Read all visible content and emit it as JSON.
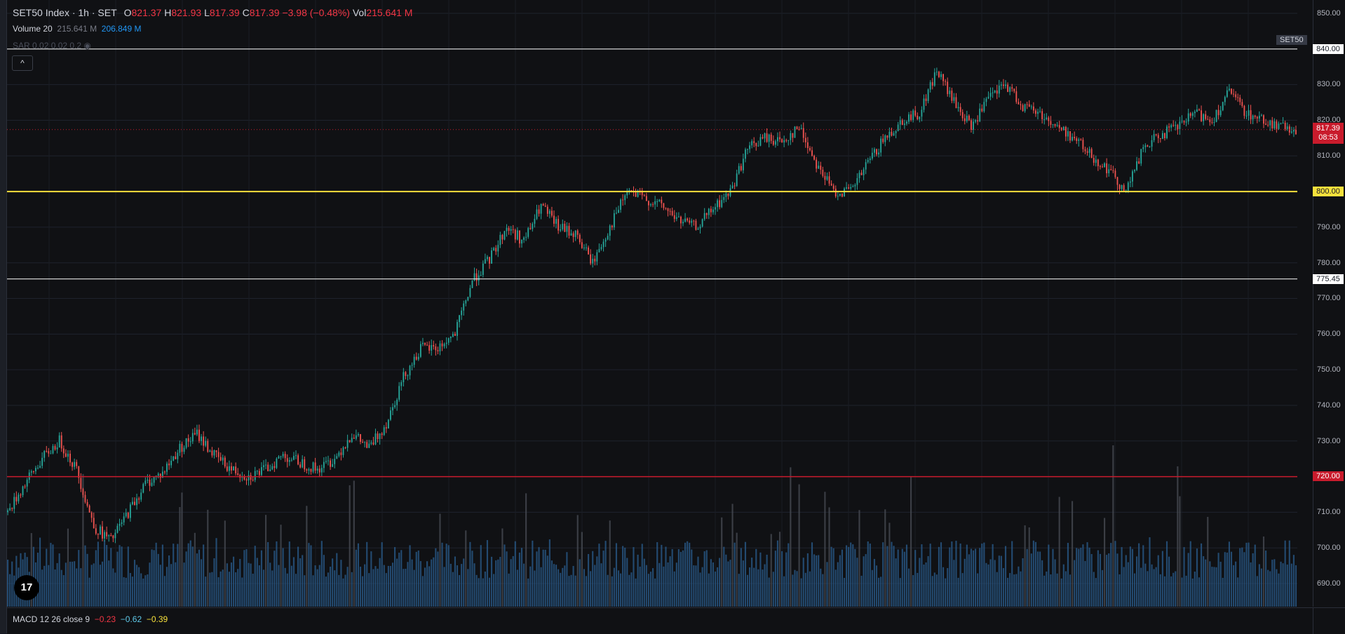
{
  "header": {
    "symbol": "SET50 Index · 1h · SET",
    "o_label": "O",
    "o_value": "821.37",
    "h_label": "H",
    "h_value": "821.93",
    "l_label": "L",
    "l_value": "817.39",
    "c_label": "C",
    "c_value": "817.39",
    "change": "−3.98 (−0.48%)",
    "vol_label": "Vol",
    "vol_value": "215.641 M"
  },
  "volume_legend": {
    "name": "Volume 20",
    "value1": "215.641 M",
    "value2": "206.849 M"
  },
  "sar_legend": {
    "text": "SAR 0.02 0.02 0.2"
  },
  "symbol_badge": "SET50",
  "collapse_button": "^",
  "logo_text": "17",
  "macd_legend": {
    "name": "MACD 12 26 close 9",
    "v1": "−0.23",
    "v2": "−0.62",
    "v3": "−0.39"
  },
  "price_axis": {
    "ticks": [
      "850.00",
      "830.00",
      "820.00",
      "810.00",
      "790.00",
      "780.00",
      "770.00",
      "760.00",
      "750.00",
      "740.00",
      "730.00",
      "710.00",
      "700.00",
      "690.00"
    ],
    "tags": {
      "t840": "840.00",
      "t800": "800.00",
      "t775": "775.45",
      "t720": "720.00",
      "last_price": "817.39",
      "countdown": "08:53"
    }
  },
  "colors": {
    "up": "#26a69a",
    "down": "#ef5350",
    "volume": "#2962ff",
    "level_white": "#ffffff",
    "level_yellow": "#f7e13c",
    "level_red": "#c91b2c"
  },
  "chart_data": {
    "type": "candlestick",
    "title": "SET50 Index · 1h · SET",
    "ylim": [
      685,
      852
    ],
    "horizontal_levels": [
      840.0,
      800.0,
      775.45,
      720.0
    ],
    "last_price": 817.39,
    "close_path_anchors": [
      [
        0,
        710
      ],
      [
        8,
        718
      ],
      [
        16,
        725
      ],
      [
        24,
        730
      ],
      [
        32,
        722
      ],
      [
        40,
        706
      ],
      [
        48,
        702
      ],
      [
        56,
        710
      ],
      [
        64,
        718
      ],
      [
        72,
        721
      ],
      [
        80,
        728
      ],
      [
        88,
        732
      ],
      [
        96,
        726
      ],
      [
        104,
        722
      ],
      [
        112,
        720
      ],
      [
        120,
        722
      ],
      [
        128,
        726
      ],
      [
        136,
        724
      ],
      [
        144,
        722
      ],
      [
        152,
        725
      ],
      [
        160,
        732
      ],
      [
        168,
        728
      ],
      [
        176,
        735
      ],
      [
        184,
        748
      ],
      [
        192,
        756
      ],
      [
        200,
        756
      ],
      [
        208,
        760
      ],
      [
        216,
        775
      ],
      [
        224,
        781
      ],
      [
        232,
        790
      ],
      [
        240,
        786
      ],
      [
        248,
        796
      ],
      [
        256,
        790
      ],
      [
        264,
        788
      ],
      [
        272,
        780
      ],
      [
        280,
        790
      ],
      [
        288,
        800
      ],
      [
        296,
        798
      ],
      [
        304,
        796
      ],
      [
        312,
        792
      ],
      [
        320,
        790
      ],
      [
        328,
        795
      ],
      [
        336,
        800
      ],
      [
        344,
        812
      ],
      [
        352,
        815
      ],
      [
        360,
        814
      ],
      [
        368,
        818
      ],
      [
        376,
        808
      ],
      [
        384,
        800
      ],
      [
        392,
        800
      ],
      [
        400,
        808
      ],
      [
        408,
        815
      ],
      [
        416,
        820
      ],
      [
        424,
        822
      ],
      [
        432,
        834
      ],
      [
        440,
        825
      ],
      [
        448,
        818
      ],
      [
        456,
        826
      ],
      [
        464,
        830
      ],
      [
        472,
        824
      ],
      [
        480,
        822
      ],
      [
        488,
        818
      ],
      [
        496,
        815
      ],
      [
        504,
        810
      ],
      [
        512,
        806
      ],
      [
        520,
        800
      ],
      [
        528,
        812
      ],
      [
        536,
        816
      ],
      [
        544,
        818
      ],
      [
        552,
        822
      ],
      [
        560,
        820
      ],
      [
        568,
        828
      ],
      [
        576,
        822
      ],
      [
        584,
        820
      ],
      [
        592,
        818
      ],
      [
        600,
        817.39
      ]
    ],
    "n_candles": 600,
    "volume_ylim": [
      0,
      400
    ]
  }
}
